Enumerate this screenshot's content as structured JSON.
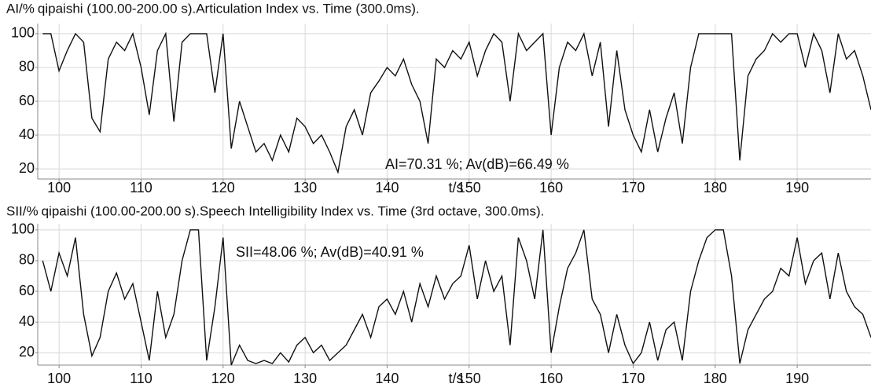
{
  "chart_data": [
    {
      "type": "line",
      "ylabel": "AI/%",
      "title": "qipaishi (100.00-200.00 s).Articulation Index vs. Time (300.0ms).",
      "xlabel": "t/s",
      "annotation": "AI=70.31 %; Av(dB)=66.49 %",
      "grid": true,
      "xlim": [
        97.4,
        199
      ],
      "ylim": [
        14,
        106
      ],
      "xticks": [
        100,
        110,
        120,
        130,
        140,
        150,
        160,
        170,
        180,
        190
      ],
      "yticks": [
        20,
        40,
        60,
        80,
        100
      ],
      "x": [
        98,
        99,
        100,
        101,
        102,
        103,
        104,
        105,
        106,
        107,
        108,
        109,
        110,
        111,
        112,
        113,
        114,
        115,
        116,
        117,
        118,
        119,
        120,
        121,
        122,
        123,
        124,
        125,
        126,
        127,
        128,
        129,
        130,
        131,
        132,
        133,
        134,
        135,
        136,
        137,
        138,
        139,
        140,
        141,
        142,
        143,
        144,
        145,
        146,
        147,
        148,
        149,
        150,
        151,
        152,
        153,
        154,
        155,
        156,
        157,
        158,
        159,
        160,
        161,
        162,
        163,
        164,
        165,
        166,
        167,
        168,
        169,
        170,
        171,
        172,
        173,
        174,
        175,
        176,
        177,
        178,
        179,
        180,
        181,
        182,
        183,
        184,
        185,
        186,
        187,
        188,
        189,
        190,
        191,
        192,
        193,
        194,
        195,
        196,
        197,
        198,
        199
      ],
      "series": [
        {
          "color": "#111111",
          "values": [
            100,
            100,
            78,
            90,
            100,
            95,
            50,
            42,
            85,
            95,
            90,
            100,
            80,
            52,
            90,
            100,
            48,
            95,
            100,
            100,
            100,
            65,
            100,
            32,
            60,
            45,
            30,
            35,
            25,
            40,
            30,
            50,
            45,
            35,
            40,
            30,
            18,
            45,
            55,
            40,
            65,
            72,
            80,
            75,
            85,
            70,
            60,
            35,
            85,
            80,
            90,
            85,
            95,
            75,
            90,
            100,
            95,
            60,
            100,
            90,
            95,
            100,
            40,
            80,
            95,
            90,
            100,
            75,
            95,
            45,
            90,
            55,
            40,
            30,
            55,
            30,
            50,
            65,
            35,
            80,
            100,
            100,
            100,
            100,
            100,
            25,
            75,
            85,
            90,
            100,
            95,
            100,
            100,
            80,
            100,
            90,
            65,
            100,
            85,
            90,
            75,
            55
          ]
        }
      ]
    },
    {
      "type": "line",
      "ylabel": "SII/%",
      "title": "qipaishi (100.00-200.00 s).Speech Intelligibility Index vs. Time (3rd octave, 300.0ms).",
      "xlabel": "t/s",
      "annotation": "SII=48.06 %; Av(dB)=40.91 %",
      "grid": true,
      "xlim": [
        97.4,
        199
      ],
      "ylim": [
        12,
        104
      ],
      "xticks": [
        100,
        110,
        120,
        130,
        140,
        150,
        160,
        170,
        180,
        190
      ],
      "yticks": [
        20,
        40,
        60,
        80,
        100
      ],
      "x": [
        98,
        99,
        100,
        101,
        102,
        103,
        104,
        105,
        106,
        107,
        108,
        109,
        110,
        111,
        112,
        113,
        114,
        115,
        116,
        117,
        118,
        119,
        120,
        121,
        122,
        123,
        124,
        125,
        126,
        127,
        128,
        129,
        130,
        131,
        132,
        133,
        134,
        135,
        136,
        137,
        138,
        139,
        140,
        141,
        142,
        143,
        144,
        145,
        146,
        147,
        148,
        149,
        150,
        151,
        152,
        153,
        154,
        155,
        156,
        157,
        158,
        159,
        160,
        161,
        162,
        163,
        164,
        165,
        166,
        167,
        168,
        169,
        170,
        171,
        172,
        173,
        174,
        175,
        176,
        177,
        178,
        179,
        180,
        181,
        182,
        183,
        184,
        185,
        186,
        187,
        188,
        189,
        190,
        191,
        192,
        193,
        194,
        195,
        196,
        197,
        198,
        199
      ],
      "series": [
        {
          "color": "#111111",
          "values": [
            80,
            60,
            85,
            70,
            95,
            45,
            18,
            30,
            60,
            72,
            55,
            65,
            40,
            15,
            60,
            30,
            45,
            80,
            100,
            100,
            15,
            50,
            95,
            12,
            25,
            15,
            13,
            15,
            13,
            20,
            14,
            25,
            30,
            20,
            25,
            15,
            20,
            25,
            35,
            45,
            30,
            50,
            55,
            45,
            60,
            40,
            65,
            50,
            70,
            55,
            65,
            70,
            90,
            55,
            80,
            60,
            70,
            25,
            95,
            80,
            55,
            100,
            20,
            50,
            75,
            85,
            100,
            55,
            45,
            20,
            45,
            25,
            13,
            20,
            40,
            15,
            35,
            40,
            15,
            60,
            80,
            95,
            100,
            100,
            70,
            13,
            35,
            45,
            55,
            60,
            75,
            70,
            95,
            65,
            80,
            85,
            55,
            85,
            60,
            50,
            45,
            30
          ]
        }
      ]
    }
  ]
}
